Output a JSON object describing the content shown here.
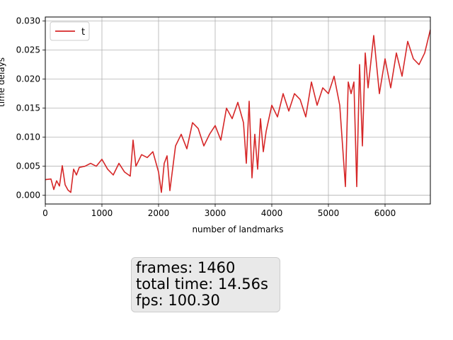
{
  "chart_data": {
    "type": "line",
    "title": "",
    "xlabel": "number of landmarks",
    "ylabel": "time delays",
    "xlim": [
      0,
      6800
    ],
    "ylim": [
      -0.0015,
      0.0307
    ],
    "x_ticks": [
      0,
      1000,
      2000,
      3000,
      4000,
      5000,
      6000
    ],
    "y_ticks": [
      0.0,
      0.005,
      0.01,
      0.015,
      0.02,
      0.025,
      0.03
    ],
    "x_tick_labels": [
      "0",
      "1000",
      "2000",
      "3000",
      "4000",
      "5000",
      "6000"
    ],
    "y_tick_labels": [
      "0.000",
      "0.005",
      "0.010",
      "0.015",
      "0.020",
      "0.025",
      "0.030"
    ],
    "grid": true,
    "legend_position": "top-left",
    "series": [
      {
        "name": "t",
        "color": "#d62728",
        "x": [
          0,
          100,
          150,
          200,
          250,
          300,
          350,
          400,
          450,
          500,
          550,
          600,
          700,
          800,
          900,
          1000,
          1100,
          1200,
          1300,
          1400,
          1500,
          1550,
          1600,
          1700,
          1800,
          1900,
          2000,
          2050,
          2100,
          2150,
          2200,
          2300,
          2400,
          2500,
          2600,
          2700,
          2800,
          2900,
          3000,
          3100,
          3200,
          3300,
          3400,
          3500,
          3550,
          3600,
          3650,
          3700,
          3750,
          3800,
          3850,
          3900,
          4000,
          4100,
          4200,
          4300,
          4400,
          4500,
          4600,
          4700,
          4800,
          4900,
          5000,
          5100,
          5200,
          5300,
          5350,
          5400,
          5450,
          5500,
          5550,
          5600,
          5650,
          5700,
          5800,
          5900,
          6000,
          6100,
          6200,
          6300,
          6400,
          6500,
          6600,
          6700,
          6800
        ],
        "y": [
          0.0027,
          0.0028,
          0.001,
          0.0025,
          0.0016,
          0.0051,
          0.0018,
          0.0009,
          0.0005,
          0.0045,
          0.0035,
          0.0048,
          0.005,
          0.0055,
          0.005,
          0.0062,
          0.0045,
          0.0035,
          0.0055,
          0.004,
          0.0033,
          0.0095,
          0.005,
          0.007,
          0.0065,
          0.0075,
          0.004,
          0.0005,
          0.0055,
          0.0068,
          0.0008,
          0.0085,
          0.0105,
          0.008,
          0.0125,
          0.0115,
          0.0085,
          0.0105,
          0.012,
          0.0095,
          0.015,
          0.0132,
          0.016,
          0.0125,
          0.0055,
          0.0162,
          0.003,
          0.0105,
          0.0045,
          0.0132,
          0.0075,
          0.011,
          0.0155,
          0.0135,
          0.0175,
          0.0145,
          0.0175,
          0.0165,
          0.0135,
          0.0195,
          0.0155,
          0.0185,
          0.0175,
          0.0205,
          0.0155,
          0.0015,
          0.0195,
          0.0175,
          0.0195,
          0.0015,
          0.0225,
          0.0085,
          0.0245,
          0.0185,
          0.0275,
          0.0175,
          0.0235,
          0.0185,
          0.0245,
          0.0205,
          0.0265,
          0.0235,
          0.0225,
          0.0245,
          0.0285
        ]
      }
    ]
  },
  "stats": {
    "frames": "frames: 1460",
    "total_time": "total time: 14.56s",
    "fps": "fps: 100.30"
  }
}
